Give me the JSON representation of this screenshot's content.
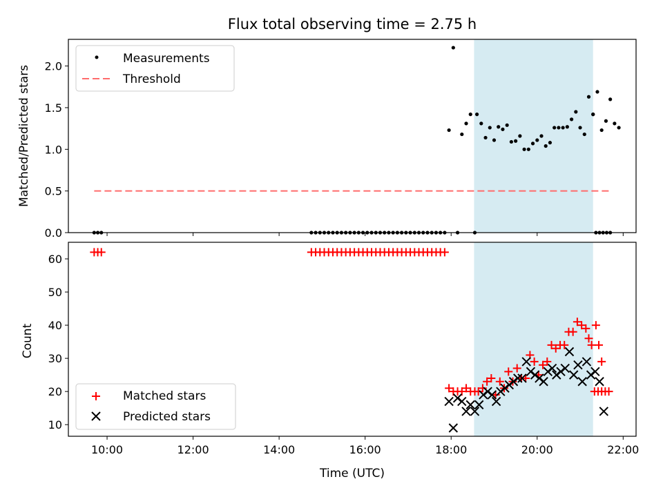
{
  "chart_data": [
    {
      "type": "scatter",
      "title": "Flux total observing time = 2.75 h",
      "xlabel": "",
      "ylabel": "Matched/Predicted stars",
      "xlim": [
        "09:06",
        "22:18"
      ],
      "ylim": [
        0,
        2.32
      ],
      "yticks": [
        0.0,
        0.5,
        1.0,
        1.5,
        2.0
      ],
      "ytick_labels": [
        "0.0",
        "0.5",
        "1.0",
        "1.5",
        "2.0"
      ],
      "grid": false,
      "legend": {
        "location": "upper left",
        "entries": [
          "Measurements",
          "Threshold"
        ]
      },
      "shaded_region": {
        "x": [
          "18:32",
          "21:18"
        ],
        "color": "#add8e6"
      },
      "threshold": {
        "name": "Threshold",
        "y": 0.5,
        "x": [
          "09:42",
          "21:42"
        ],
        "color": "#ff6b6b"
      },
      "series": [
        {
          "name": "Measurements",
          "marker": "dot",
          "color": "#000000",
          "points": [
            [
              "09:42",
              0
            ],
            [
              "09:47",
              0
            ],
            [
              "09:52",
              0
            ],
            [
              "14:45",
              0
            ],
            [
              "14:51",
              0
            ],
            [
              "14:57",
              0
            ],
            [
              "15:03",
              0
            ],
            [
              "15:09",
              0
            ],
            [
              "15:15",
              0
            ],
            [
              "15:21",
              0
            ],
            [
              "15:27",
              0
            ],
            [
              "15:33",
              0
            ],
            [
              "15:39",
              0
            ],
            [
              "15:45",
              0
            ],
            [
              "15:51",
              0
            ],
            [
              "15:57",
              0
            ],
            [
              "16:03",
              0
            ],
            [
              "16:09",
              0
            ],
            [
              "16:15",
              0
            ],
            [
              "16:21",
              0
            ],
            [
              "16:27",
              0
            ],
            [
              "16:33",
              0
            ],
            [
              "16:39",
              0
            ],
            [
              "16:45",
              0
            ],
            [
              "16:51",
              0
            ],
            [
              "16:57",
              0
            ],
            [
              "17:03",
              0
            ],
            [
              "17:09",
              0
            ],
            [
              "17:15",
              0
            ],
            [
              "17:21",
              0
            ],
            [
              "17:27",
              0
            ],
            [
              "17:33",
              0
            ],
            [
              "17:39",
              0
            ],
            [
              "17:45",
              0
            ],
            [
              "17:51",
              0
            ],
            [
              "17:57",
              1.23
            ],
            [
              "18:03",
              2.22
            ],
            [
              "18:09",
              0
            ],
            [
              "18:15",
              1.18
            ],
            [
              "18:21",
              1.31
            ],
            [
              "18:27",
              1.42
            ],
            [
              "18:33",
              0
            ],
            [
              "18:36",
              1.42
            ],
            [
              "18:42",
              1.31
            ],
            [
              "18:48",
              1.14
            ],
            [
              "18:54",
              1.26
            ],
            [
              "19:00",
              1.11
            ],
            [
              "19:06",
              1.27
            ],
            [
              "19:12",
              1.24
            ],
            [
              "19:18",
              1.29
            ],
            [
              "19:24",
              1.09
            ],
            [
              "19:30",
              1.1
            ],
            [
              "19:36",
              1.16
            ],
            [
              "19:42",
              1.0
            ],
            [
              "19:48",
              1.0
            ],
            [
              "19:54",
              1.07
            ],
            [
              "20:00",
              1.11
            ],
            [
              "20:06",
              1.16
            ],
            [
              "20:12",
              1.04
            ],
            [
              "20:18",
              1.08
            ],
            [
              "20:24",
              1.26
            ],
            [
              "20:30",
              1.26
            ],
            [
              "20:36",
              1.26
            ],
            [
              "20:42",
              1.27
            ],
            [
              "20:48",
              1.36
            ],
            [
              "20:54",
              1.45
            ],
            [
              "21:00",
              1.26
            ],
            [
              "21:06",
              1.18
            ],
            [
              "21:12",
              1.63
            ],
            [
              "21:18",
              1.42
            ],
            [
              "21:24",
              1.69
            ],
            [
              "21:30",
              1.23
            ],
            [
              "21:36",
              1.34
            ],
            [
              "21:42",
              1.6
            ],
            [
              "21:48",
              1.31
            ],
            [
              "21:54",
              1.26
            ],
            [
              "21:18",
              1.42
            ],
            [
              "21:22",
              0
            ],
            [
              "21:27",
              0
            ],
            [
              "21:32",
              0
            ],
            [
              "21:37",
              0
            ],
            [
              "21:42",
              0
            ]
          ]
        }
      ]
    },
    {
      "type": "scatter",
      "title": "",
      "xlabel": "Time (UTC)",
      "ylabel": "Count",
      "xlim": [
        "09:06",
        "22:18"
      ],
      "ylim": [
        6.5,
        65
      ],
      "yticks": [
        10,
        20,
        30,
        40,
        50,
        60
      ],
      "ytick_labels": [
        "10",
        "20",
        "30",
        "40",
        "50",
        "60"
      ],
      "xticks": [
        "10:00",
        "12:00",
        "14:00",
        "16:00",
        "18:00",
        "20:00",
        "22:00"
      ],
      "xtick_labels": [
        "10:00",
        "12:00",
        "14:00",
        "16:00",
        "18:00",
        "20:00",
        "22:00"
      ],
      "grid": false,
      "legend": {
        "location": "lower left",
        "entries": [
          "Matched stars",
          "Predicted stars"
        ]
      },
      "shaded_region": {
        "x": [
          "18:32",
          "21:18"
        ],
        "color": "#add8e6"
      },
      "series": [
        {
          "name": "Matched stars",
          "marker": "plus",
          "color": "#ff0000",
          "points": [
            [
              "09:42",
              62
            ],
            [
              "09:47",
              62
            ],
            [
              "09:52",
              62
            ],
            [
              "14:45",
              62
            ],
            [
              "14:51",
              62
            ],
            [
              "14:57",
              62
            ],
            [
              "15:03",
              62
            ],
            [
              "15:09",
              62
            ],
            [
              "15:15",
              62
            ],
            [
              "15:21",
              62
            ],
            [
              "15:27",
              62
            ],
            [
              "15:33",
              62
            ],
            [
              "15:39",
              62
            ],
            [
              "15:45",
              62
            ],
            [
              "15:51",
              62
            ],
            [
              "15:57",
              62
            ],
            [
              "16:03",
              62
            ],
            [
              "16:09",
              62
            ],
            [
              "16:15",
              62
            ],
            [
              "16:21",
              62
            ],
            [
              "16:27",
              62
            ],
            [
              "16:33",
              62
            ],
            [
              "16:39",
              62
            ],
            [
              "16:45",
              62
            ],
            [
              "16:51",
              62
            ],
            [
              "16:57",
              62
            ],
            [
              "17:03",
              62
            ],
            [
              "17:09",
              62
            ],
            [
              "17:15",
              62
            ],
            [
              "17:21",
              62
            ],
            [
              "17:27",
              62
            ],
            [
              "17:33",
              62
            ],
            [
              "17:39",
              62
            ],
            [
              "17:45",
              62
            ],
            [
              "17:51",
              62
            ],
            [
              "17:57",
              21
            ],
            [
              "18:03",
              20
            ],
            [
              "18:09",
              20
            ],
            [
              "18:15",
              20
            ],
            [
              "18:21",
              21
            ],
            [
              "18:27",
              20
            ],
            [
              "18:33",
              20
            ],
            [
              "18:38",
              20
            ],
            [
              "18:44",
              21
            ],
            [
              "18:50",
              23
            ],
            [
              "18:56",
              24
            ],
            [
              "19:02",
              19
            ],
            [
              "19:08",
              23
            ],
            [
              "19:14",
              21
            ],
            [
              "19:20",
              26
            ],
            [
              "19:26",
              23
            ],
            [
              "19:32",
              27
            ],
            [
              "19:38",
              24
            ],
            [
              "19:44",
              24
            ],
            [
              "19:50",
              31
            ],
            [
              "19:56",
              29
            ],
            [
              "20:02",
              25
            ],
            [
              "20:08",
              28
            ],
            [
              "20:14",
              29
            ],
            [
              "20:20",
              34
            ],
            [
              "20:26",
              33
            ],
            [
              "20:32",
              34
            ],
            [
              "20:38",
              34
            ],
            [
              "20:44",
              38
            ],
            [
              "20:50",
              38
            ],
            [
              "20:56",
              41
            ],
            [
              "21:02",
              40
            ],
            [
              "21:08",
              39
            ],
            [
              "21:12",
              36
            ],
            [
              "21:16",
              34
            ],
            [
              "21:22",
              40
            ],
            [
              "21:26",
              34
            ],
            [
              "21:30",
              29
            ],
            [
              "21:20",
              20
            ],
            [
              "21:25",
              20
            ],
            [
              "21:30",
              20
            ],
            [
              "21:35",
              20
            ],
            [
              "21:40",
              20
            ]
          ]
        },
        {
          "name": "Predicted stars",
          "marker": "x",
          "color": "#000000",
          "points": [
            [
              "17:57",
              17
            ],
            [
              "18:03",
              9
            ],
            [
              "18:09",
              18
            ],
            [
              "18:15",
              17
            ],
            [
              "18:21",
              14
            ],
            [
              "18:27",
              16
            ],
            [
              "18:33",
              14
            ],
            [
              "18:39",
              16
            ],
            [
              "18:45",
              19
            ],
            [
              "18:51",
              20
            ],
            [
              "18:57",
              19
            ],
            [
              "19:03",
              17
            ],
            [
              "19:09",
              20
            ],
            [
              "19:15",
              21
            ],
            [
              "19:21",
              22
            ],
            [
              "19:27",
              23
            ],
            [
              "19:33",
              24
            ],
            [
              "19:39",
              24
            ],
            [
              "19:45",
              29
            ],
            [
              "19:51",
              26
            ],
            [
              "19:57",
              25
            ],
            [
              "20:03",
              24
            ],
            [
              "20:09",
              23
            ],
            [
              "20:15",
              26
            ],
            [
              "20:21",
              27
            ],
            [
              "20:27",
              25
            ],
            [
              "20:33",
              26
            ],
            [
              "20:39",
              27
            ],
            [
              "20:45",
              32
            ],
            [
              "20:51",
              25
            ],
            [
              "20:57",
              28
            ],
            [
              "21:03",
              23
            ],
            [
              "21:09",
              29
            ],
            [
              "21:15",
              25
            ],
            [
              "21:21",
              26
            ],
            [
              "21:27",
              23
            ],
            [
              "21:33",
              14
            ]
          ]
        }
      ]
    }
  ]
}
